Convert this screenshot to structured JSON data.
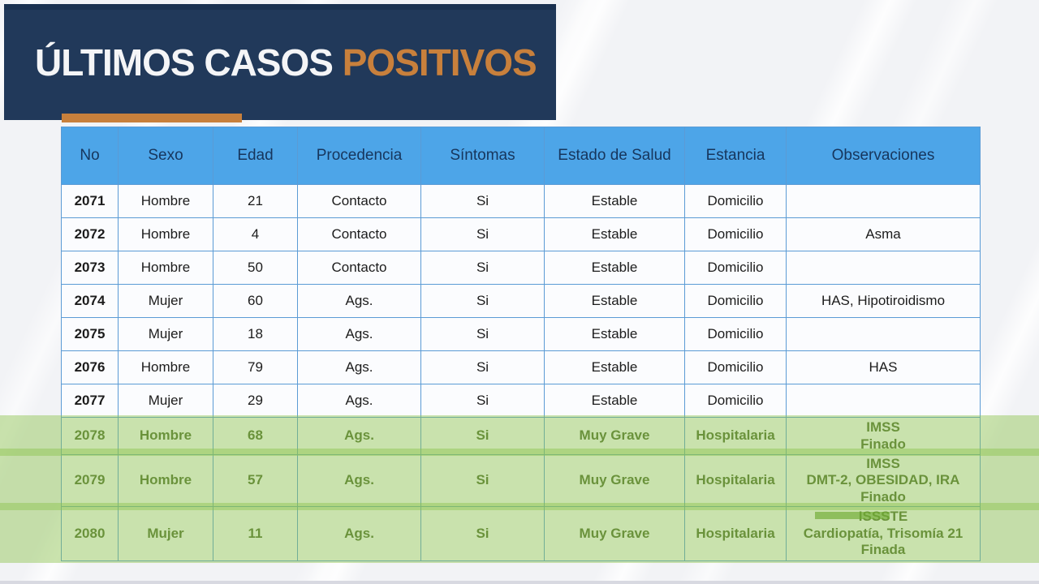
{
  "slide": {
    "title_white": "ÚLTIMOS CASOS ",
    "title_orange": "POSITIVOS"
  },
  "colors": {
    "navy": "#21395a",
    "orange": "#c8803c",
    "header_blue": "#4da5e8",
    "highlight_green": "#8cc34b",
    "green_text": "#4f6b2e"
  },
  "table": {
    "headers": [
      "No",
      "Sexo",
      "Edad",
      "Procedencia",
      "Síntomas",
      "Estado de Salud",
      "Estancia",
      "Observaciones"
    ],
    "rows": [
      {
        "highlight": false,
        "cells": [
          "2071",
          "Hombre",
          "21",
          "Contacto",
          "Si",
          "Estable",
          "Domicilio",
          ""
        ]
      },
      {
        "highlight": false,
        "cells": [
          "2072",
          "Hombre",
          "4",
          "Contacto",
          "Si",
          "Estable",
          "Domicilio",
          "Asma"
        ]
      },
      {
        "highlight": false,
        "cells": [
          "2073",
          "Hombre",
          "50",
          "Contacto",
          "Si",
          "Estable",
          "Domicilio",
          ""
        ]
      },
      {
        "highlight": false,
        "cells": [
          "2074",
          "Mujer",
          "60",
          "Ags.",
          "Si",
          "Estable",
          "Domicilio",
          "HAS, Hipotiroidismo"
        ]
      },
      {
        "highlight": false,
        "cells": [
          "2075",
          "Mujer",
          "18",
          "Ags.",
          "Si",
          "Estable",
          "Domicilio",
          ""
        ]
      },
      {
        "highlight": false,
        "cells": [
          "2076",
          "Hombre",
          "79",
          "Ags.",
          "Si",
          "Estable",
          "Domicilio",
          "HAS"
        ]
      },
      {
        "highlight": false,
        "cells": [
          "2077",
          "Mujer",
          "29",
          "Ags.",
          "Si",
          "Estable",
          "Domicilio",
          ""
        ]
      },
      {
        "highlight": true,
        "cells": [
          "2078",
          "Hombre",
          "68",
          "Ags.",
          "Si",
          "Muy Grave",
          "Hospitalaria",
          "IMSS\nFinado"
        ]
      },
      {
        "highlight": true,
        "cells": [
          "2079",
          "Hombre",
          "57",
          "Ags.",
          "Si",
          "Muy Grave",
          "Hospitalaria",
          "IMSS\nDMT-2, OBESIDAD, IRA\nFinado"
        ]
      },
      {
        "highlight": true,
        "cells": [
          "2080",
          "Mujer",
          "11",
          "Ags.",
          "Si",
          "Muy Grave",
          "Hospitalaria",
          "ISSSTE\nCardiopatía, Trisomía 21\nFinada"
        ]
      }
    ]
  }
}
